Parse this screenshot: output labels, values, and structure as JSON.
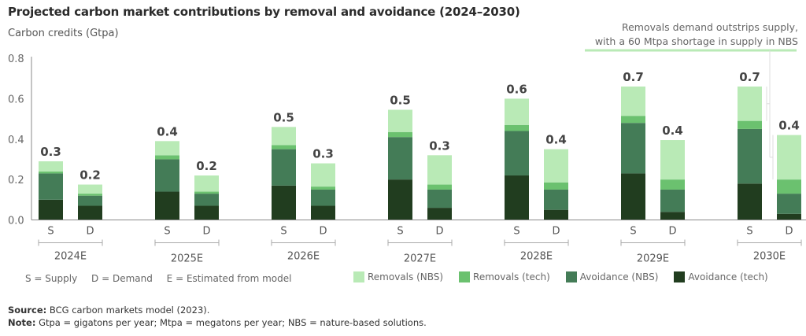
{
  "chart_data": {
    "type": "bar",
    "stacked": true,
    "title": "Projected carbon market contributions by removal and avoidance (2024–2030)",
    "ylabel": "Carbon credits (Gtpa)",
    "xlabel": "",
    "ylim": [
      0,
      0.8
    ],
    "yticks": [
      "0.0",
      "0.2",
      "0.4",
      "0.6",
      "0.8"
    ],
    "ytick_values": [
      0,
      0.2,
      0.4,
      0.6,
      0.8
    ],
    "grid": false,
    "legend_position": "bottom-right",
    "groups": [
      "2024E",
      "2025E",
      "2026E",
      "2027E",
      "2028E",
      "2029E",
      "2030E"
    ],
    "bar_labels": [
      "S",
      "D"
    ],
    "series_order_bottom_to_top": [
      "Avoidance (tech)",
      "Avoidance (NBS)",
      "Removals (tech)",
      "Removals (NBS)"
    ],
    "series": [
      {
        "name": "Avoidance (tech)",
        "color": "#213d1f",
        "supply": [
          0.1,
          0.14,
          0.17,
          0.2,
          0.22,
          0.23,
          0.18
        ],
        "demand": [
          0.07,
          0.07,
          0.07,
          0.06,
          0.05,
          0.04,
          0.03
        ]
      },
      {
        "name": "Avoidance (NBS)",
        "color": "#447c57",
        "supply": [
          0.13,
          0.16,
          0.18,
          0.21,
          0.22,
          0.25,
          0.27
        ],
        "demand": [
          0.05,
          0.06,
          0.08,
          0.09,
          0.1,
          0.11,
          0.1
        ]
      },
      {
        "name": "Removals (tech)",
        "color": "#6bc16f",
        "supply": [
          0.01,
          0.02,
          0.02,
          0.025,
          0.03,
          0.035,
          0.04
        ],
        "demand": [
          0.01,
          0.01,
          0.015,
          0.025,
          0.035,
          0.05,
          0.07
        ]
      },
      {
        "name": "Removals (NBS)",
        "color": "#b9eab6",
        "supply": [
          0.05,
          0.07,
          0.09,
          0.11,
          0.13,
          0.145,
          0.17
        ],
        "demand": [
          0.045,
          0.08,
          0.115,
          0.145,
          0.165,
          0.195,
          0.22
        ]
      }
    ],
    "totals_labels": {
      "supply": [
        "0.3",
        "0.4",
        "0.5",
        "0.5",
        "0.6",
        "0.7",
        "0.7"
      ],
      "demand": [
        "0.2",
        "0.2",
        "0.3",
        "0.3",
        "0.4",
        "0.4",
        "0.4"
      ]
    },
    "annotation": {
      "line1": "Removals demand outstrips supply,",
      "line2": "with a 60 Mtpa shortage in supply in NBS",
      "color": "#b9eab6",
      "target_group": "2030E"
    }
  },
  "legend_notes": {
    "supply": "S = Supply",
    "demand": "D = Demand",
    "estimated": "E = Estimated from model"
  },
  "footer": {
    "source_label": "Source:",
    "source_text": " BCG carbon markets model (2023).",
    "note_label": "Note:",
    "note_text": " Gtpa = gigatons per year; Mtpa = megatons per year; NBS = nature-based solutions."
  }
}
